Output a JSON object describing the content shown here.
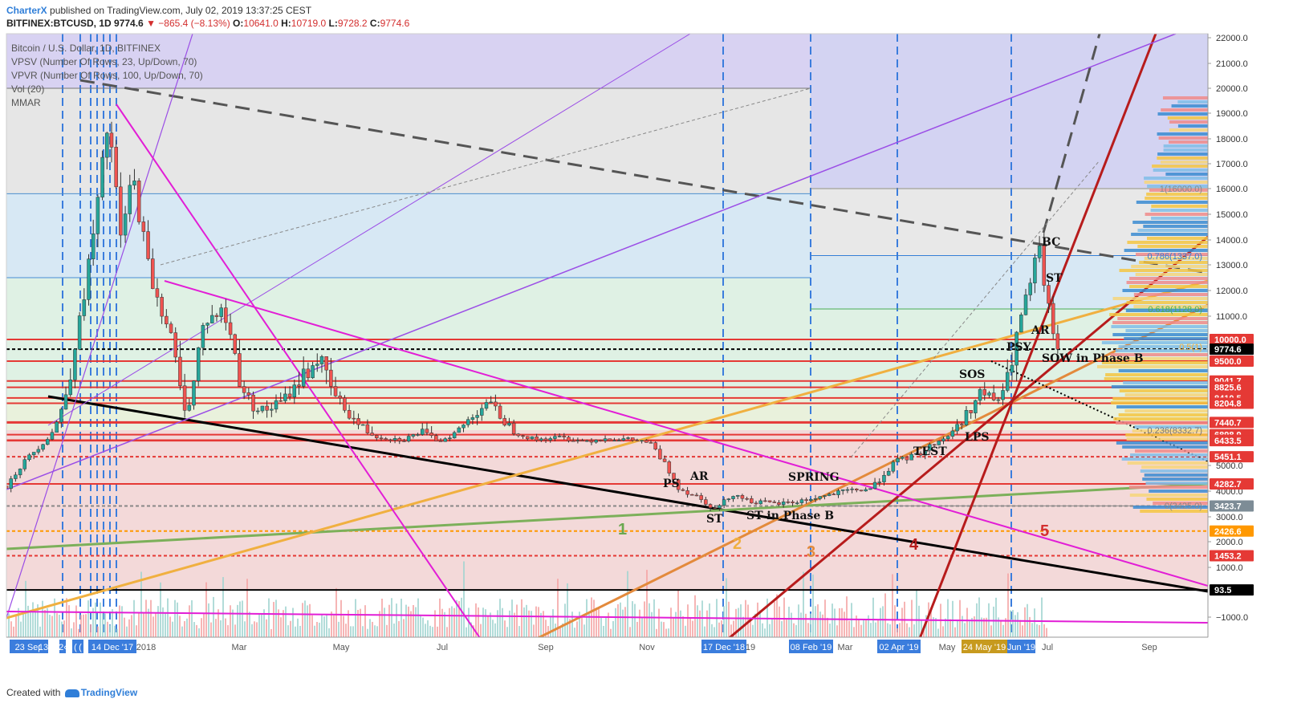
{
  "header": {
    "author": "CharterX",
    "published_text": "published on TradingView.com, July 02, 2019 13:37:25 CEST",
    "symbol": "BITFINEX:BTCUSD, 1D",
    "last": "9774.6",
    "change": "−865.4 (−8.13%)",
    "open": "10641.0",
    "high": "10719.0",
    "low": "9728.2",
    "close": "9774.6"
  },
  "legend": {
    "title": "Bitcoin / U.S. Dollar, 1D, BITFINEX",
    "items": [
      "VPSV (Number Of Rows, 23, Up/Down, 70)",
      "VPVR (Number Of Rows, 100, Up/Down, 70)",
      "Vol (20)",
      "MMAR"
    ]
  },
  "footer": {
    "created_with": "Created with",
    "brand": "TradingView"
  },
  "colors": {
    "accent": "#2f7ed8",
    "down": "#d32f2f",
    "up": "#26a69a"
  },
  "chart_data": {
    "type": "candlestick",
    "title": "Bitcoin / U.S. Dollar, 1D, BITFINEX",
    "ylim": [
      -1500,
      22200
    ],
    "y_ticks": [
      -1000,
      1000,
      2000,
      3000,
      4000,
      5000,
      6000,
      7000,
      8000,
      9000,
      10000,
      11000,
      12000,
      13000,
      14000,
      15000,
      16000,
      17000,
      18000,
      19000,
      20000,
      21000,
      22000
    ],
    "y_tick_labels": [
      "−1000.0",
      "1000.0",
      "2000.0",
      "3000.0",
      "4000.0",
      "5000.0",
      "6000.0",
      "7000.0",
      "8000.0",
      "9000.0",
      "10000.0",
      "11000.0",
      "12000.0",
      "13000.0",
      "14000.0",
      "15000.0",
      "16000.0",
      "17000.0",
      "18000.0",
      "19000.0",
      "20000.0",
      "21000.0",
      "22000.0"
    ],
    "x_labels": [
      "2018",
      "Mar",
      "May",
      "Jul",
      "Sep",
      "Nov",
      "19",
      "Mar",
      "May",
      "Jul",
      "Sep"
    ],
    "x_highlight_labels": [
      "23 Sep",
      "13",
      "2‹",
      "(",
      "(",
      "14 Dec '17",
      "17 Dec '18",
      "08 Feb '19",
      "02 Apr '19",
      "24 May '19",
      "Jun '19"
    ],
    "price_path": [
      [
        0.0,
        4200
      ],
      [
        0.03,
        6200
      ],
      [
        0.045,
        7800
      ],
      [
        0.06,
        10500
      ],
      [
        0.075,
        15000
      ],
      [
        0.085,
        18800
      ],
      [
        0.095,
        14000
      ],
      [
        0.105,
        16500
      ],
      [
        0.12,
        12500
      ],
      [
        0.135,
        10500
      ],
      [
        0.15,
        7800
      ],
      [
        0.165,
        10800
      ],
      [
        0.18,
        11200
      ],
      [
        0.195,
        8900
      ],
      [
        0.205,
        8100
      ],
      [
        0.215,
        7900
      ],
      [
        0.23,
        8300
      ],
      [
        0.245,
        9100
      ],
      [
        0.26,
        9600
      ],
      [
        0.275,
        8400
      ],
      [
        0.29,
        7500
      ],
      [
        0.31,
        6700
      ],
      [
        0.33,
        6500
      ],
      [
        0.345,
        7100
      ],
      [
        0.36,
        6400
      ],
      [
        0.38,
        7300
      ],
      [
        0.4,
        8300
      ],
      [
        0.42,
        7200
      ],
      [
        0.44,
        6500
      ],
      [
        0.46,
        6700
      ],
      [
        0.48,
        6400
      ],
      [
        0.5,
        6600
      ],
      [
        0.52,
        6500
      ],
      [
        0.535,
        6300
      ],
      [
        0.545,
        5300
      ],
      [
        0.56,
        4100
      ],
      [
        0.575,
        3800
      ],
      [
        0.59,
        3300
      ],
      [
        0.605,
        3900
      ],
      [
        0.62,
        3600
      ],
      [
        0.64,
        3500
      ],
      [
        0.66,
        3600
      ],
      [
        0.68,
        3800
      ],
      [
        0.7,
        4000
      ],
      [
        0.72,
        4100
      ],
      [
        0.74,
        5200
      ],
      [
        0.76,
        5600
      ],
      [
        0.78,
        6600
      ],
      [
        0.8,
        7800
      ],
      [
        0.81,
        8600
      ],
      [
        0.825,
        8300
      ],
      [
        0.835,
        9200
      ],
      [
        0.845,
        11000
      ],
      [
        0.855,
        12800
      ],
      [
        0.86,
        13600
      ],
      [
        0.865,
        11800
      ],
      [
        0.87,
        10600
      ],
      [
        0.875,
        9774.6
      ]
    ],
    "horizontal_levels": [
      10000.0,
      9774.6,
      9500.0,
      9041.7,
      8825.6,
      8410.5,
      8204.8,
      7440.7,
      6898.9,
      6467.0,
      6433.5,
      5451.1,
      4282.7,
      3423.7,
      2426.6,
      1453.2,
      93.5
    ],
    "level_labels": [
      "10000.0",
      "9774.6",
      "9500.0",
      "9041.7",
      "8825.6",
      "8410.5",
      "8204.8",
      "7440.7",
      "6898.9",
      "6467.0",
      "6433.5",
      "5451.1",
      "4282.7",
      "3423.7",
      "2426.6",
      "1453.2",
      "93.5"
    ],
    "fib_labels": [
      "1(16000.0)",
      "0.786(1337.0)",
      "0.618(1128.0)",
      "0.5(1)",
      "0.236(8332.7)",
      "0(3425.0)"
    ],
    "annotations": [
      "BC",
      "ST",
      "AR",
      "PSY",
      "SOW in Phase B",
      "SOS",
      "LPS",
      "TEST",
      "SPRING",
      "PS",
      "AR",
      "ST",
      "ST in Phase B"
    ],
    "trend_numbers": [
      "1",
      "2",
      "3",
      "4",
      "5"
    ]
  }
}
